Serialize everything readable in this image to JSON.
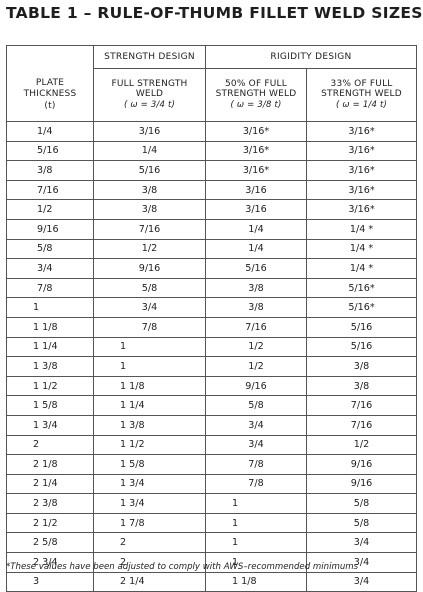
{
  "title": "TABLE 1 – RULE-OF-THUMB FILLET WELD SIZES",
  "headers": {
    "strength_design": "STRENGTH DESIGN",
    "rigidity_design": "RIGIDITY DESIGN",
    "plate_thickness_line1": "PLATE",
    "plate_thickness_line2": "THICKNESS",
    "plate_thickness_line3": "(t)",
    "full_strength_line1": "FULL STRENGTH",
    "full_strength_line2": "WELD",
    "full_strength_line3": "( ω = 3/4 t)",
    "fifty_line1": "50% OF FULL",
    "fifty_line2": "STRENGTH WELD",
    "fifty_line3": "( ω = 3/8 t)",
    "thirtythree_line1": "33% OF FULL",
    "thirtythree_line2": "STRENGTH WELD",
    "thirtythree_line3": "( ω = 1/4 t)"
  },
  "rows": [
    {
      "t": "1/4",
      "full": "3/16",
      "fifty": "3/16*",
      "thirty": "3/16*"
    },
    {
      "t": "5/16",
      "full": "1/4",
      "fifty": "3/16*",
      "thirty": "3/16*"
    },
    {
      "t": "3/8",
      "full": "5/16",
      "fifty": "3/16*",
      "thirty": "3/16*"
    },
    {
      "t": "7/16",
      "full": "3/8",
      "fifty": "3/16",
      "thirty": "3/16*"
    },
    {
      "t": "1/2",
      "full": "3/8",
      "fifty": "3/16",
      "thirty": "3/16*"
    },
    {
      "t": "9/16",
      "full": "7/16",
      "fifty": "1/4",
      "thirty": "1/4 *"
    },
    {
      "t": "5/8",
      "full": "1/2",
      "fifty": "1/4",
      "thirty": "1/4 *"
    },
    {
      "t": "3/4",
      "full": "9/16",
      "fifty": "5/16",
      "thirty": "1/4 *"
    },
    {
      "t": "7/8",
      "full": "5/8",
      "fifty": "3/8",
      "thirty": "5/16*"
    },
    {
      "t": "1",
      "full": "3/4",
      "fifty": "3/8",
      "thirty": "5/16*"
    },
    {
      "t": "1 1/8",
      "full": "7/8",
      "fifty": "7/16",
      "thirty": "5/16"
    },
    {
      "t": "1 1/4",
      "full": "1",
      "fifty": "1/2",
      "thirty": "5/16"
    },
    {
      "t": "1 3/8",
      "full": "1",
      "fifty": "1/2",
      "thirty": "3/8"
    },
    {
      "t": "1 1/2",
      "full": "1 1/8",
      "fifty": "9/16",
      "thirty": "3/8"
    },
    {
      "t": "1 5/8",
      "full": "1 1/4",
      "fifty": "5/8",
      "thirty": "7/16"
    },
    {
      "t": "1 3/4",
      "full": "1 3/8",
      "fifty": "3/4",
      "thirty": "7/16"
    },
    {
      "t": "2",
      "full": "1 1/2",
      "fifty": "3/4",
      "thirty": "1/2"
    },
    {
      "t": "2 1/8",
      "full": "1 5/8",
      "fifty": "7/8",
      "thirty": "9/16"
    },
    {
      "t": "2 1/4",
      "full": "1 3/4",
      "fifty": "7/8",
      "thirty": "9/16"
    },
    {
      "t": "2 3/8",
      "full": "1 3/4",
      "fifty": "1",
      "thirty": "5/8"
    },
    {
      "t": "2 1/2",
      "full": "1 7/8",
      "fifty": "1",
      "thirty": "5/8"
    },
    {
      "t": "2 5/8",
      "full": "2",
      "fifty": "1",
      "thirty": "3/4"
    },
    {
      "t": "2 3/4",
      "full": "2",
      "fifty": "1",
      "thirty": "3/4"
    },
    {
      "t": "3",
      "full": "2 1/4",
      "fifty": "1 1/8",
      "thirty": "3/4"
    }
  ],
  "footnote": "*These values have been adjusted to comply with AWS–recommended minimums"
}
